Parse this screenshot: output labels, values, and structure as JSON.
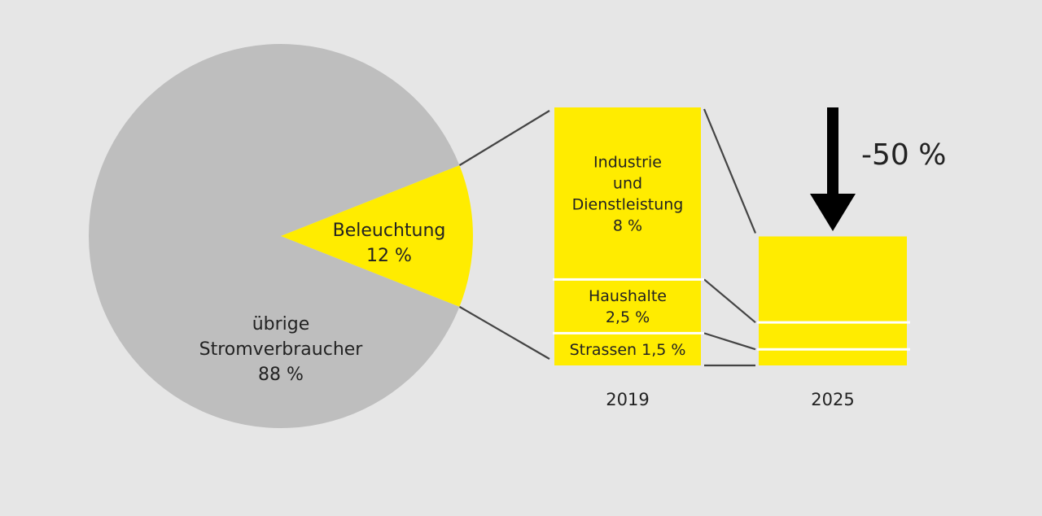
{
  "colors": {
    "background": "#e6e6e6",
    "pie_rest": "#bebebe",
    "highlight": "#ffec00",
    "divider": "#ffffff",
    "connector": "#444444",
    "text": "#222222",
    "arrow": "#000000"
  },
  "chart_data": {
    "type": "pie",
    "pie": {
      "slices": [
        {
          "label_lines": [
            "übrige",
            "Stromverbraucher",
            "88 %"
          ],
          "value": 88
        },
        {
          "label_lines": [
            "Beleuchtung",
            "12 %"
          ],
          "value": 12
        }
      ]
    },
    "breakdown": {
      "type": "stacked-bar",
      "bars": [
        {
          "year": "2019",
          "segments": [
            {
              "label_lines": [
                "Industrie",
                "und",
                "Dienstleistung",
                "8 %"
              ],
              "value": 8
            },
            {
              "label_lines": [
                "Haushalte",
                "2,5 %"
              ],
              "value": 2.5
            },
            {
              "label_lines": [
                "Strassen 1,5 %"
              ],
              "value": 1.5
            }
          ]
        },
        {
          "year": "2025",
          "segments": [
            {
              "value": 4
            },
            {
              "value": 1.25
            },
            {
              "value": 0.75
            }
          ]
        }
      ],
      "reduction_label": "-50 %",
      "reduction_value": -50
    }
  }
}
